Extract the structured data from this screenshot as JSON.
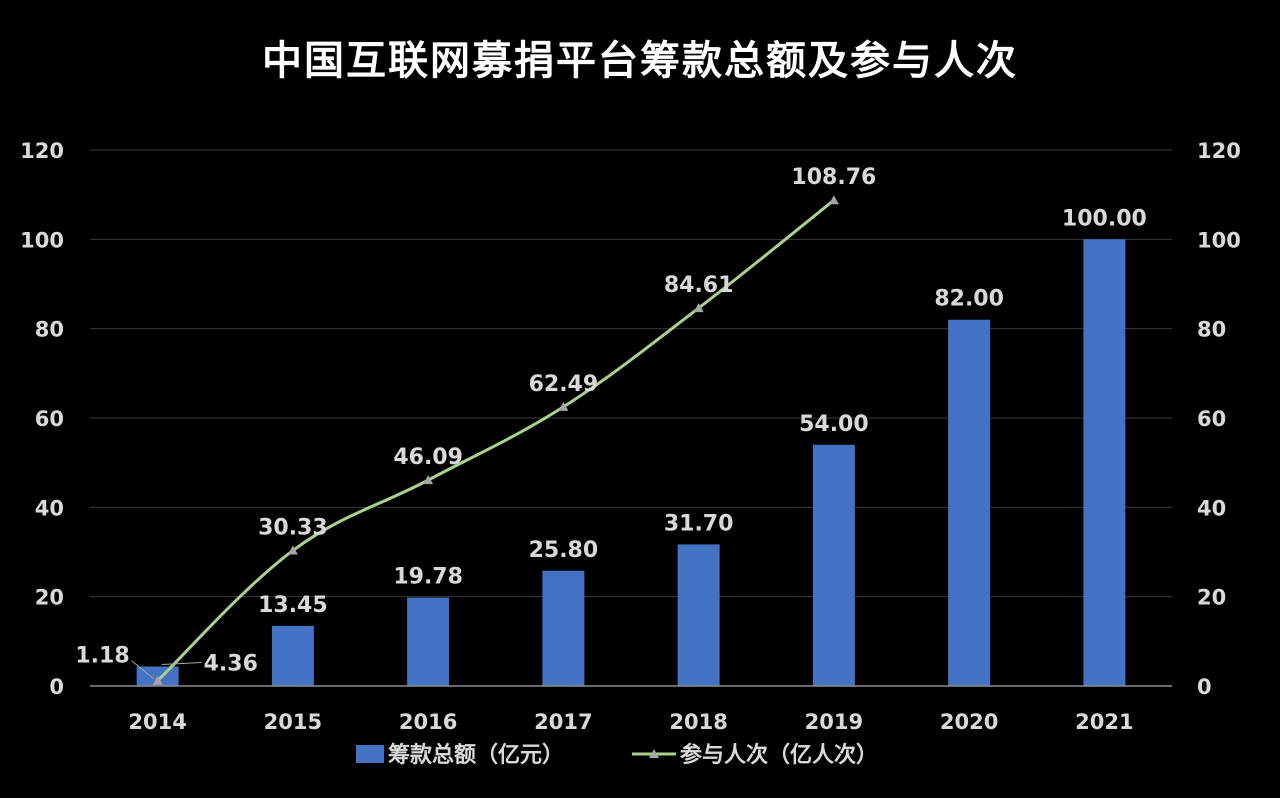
{
  "chart_data": {
    "type": "bar",
    "title": "中国互联网募捐平台筹款总额及参与人次",
    "categories": [
      "2014",
      "2015",
      "2016",
      "2017",
      "2018",
      "2019",
      "2020",
      "2021"
    ],
    "series": [
      {
        "name": "筹款总额（亿元）",
        "type": "bar",
        "axis": "left",
        "color": "#4472c4",
        "values": [
          4.36,
          13.45,
          19.78,
          25.8,
          31.7,
          54.0,
          82.0,
          100.0
        ],
        "labels": [
          "4.36",
          "13.45",
          "19.78",
          "25.80",
          "31.70",
          "54.00",
          "82.00",
          "100.00"
        ]
      },
      {
        "name": "参与人次（亿人次）",
        "type": "line",
        "axis": "right",
        "color": "#a9d18e",
        "marker_color": "#a5a5a5",
        "values": [
          1.18,
          30.33,
          46.09,
          62.49,
          84.61,
          108.76,
          null,
          null
        ],
        "labels": [
          "1.18",
          "30.33",
          "46.09",
          "62.49",
          "84.61",
          "108.76",
          null,
          null
        ]
      }
    ],
    "ylim": [
      0,
      120
    ],
    "y2lim": [
      0,
      120
    ],
    "yticks": [
      "0",
      "20",
      "40",
      "60",
      "80",
      "100",
      "120"
    ],
    "y2ticks": [
      "0",
      "20",
      "40",
      "60",
      "80",
      "100",
      "120"
    ],
    "grid": true,
    "legend": "bottom",
    "background": "#000000",
    "text_color": "#d9d9d9"
  }
}
